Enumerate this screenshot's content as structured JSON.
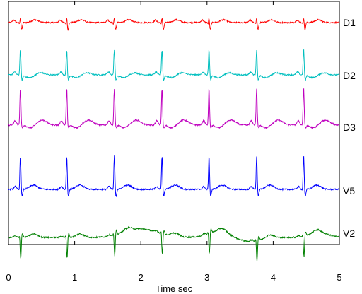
{
  "chart_data": {
    "type": "line",
    "xlabel": "Time sec",
    "ylabel": "",
    "xlim": [
      0,
      5
    ],
    "x_ticks": [
      "0",
      "1",
      "2",
      "3",
      "4",
      "5"
    ],
    "grid": false,
    "beat_times": [
      0.18,
      0.88,
      1.6,
      2.32,
      3.03,
      3.75,
      4.46
    ],
    "series": [
      {
        "name": "D1",
        "color": "#ff0000"
      },
      {
        "name": "D2",
        "color": "#00bfbf"
      },
      {
        "name": "D3",
        "color": "#bf00bf"
      },
      {
        "name": "V5",
        "color": "#0000ff"
      },
      {
        "name": "V2",
        "color": "#008000"
      }
    ]
  }
}
